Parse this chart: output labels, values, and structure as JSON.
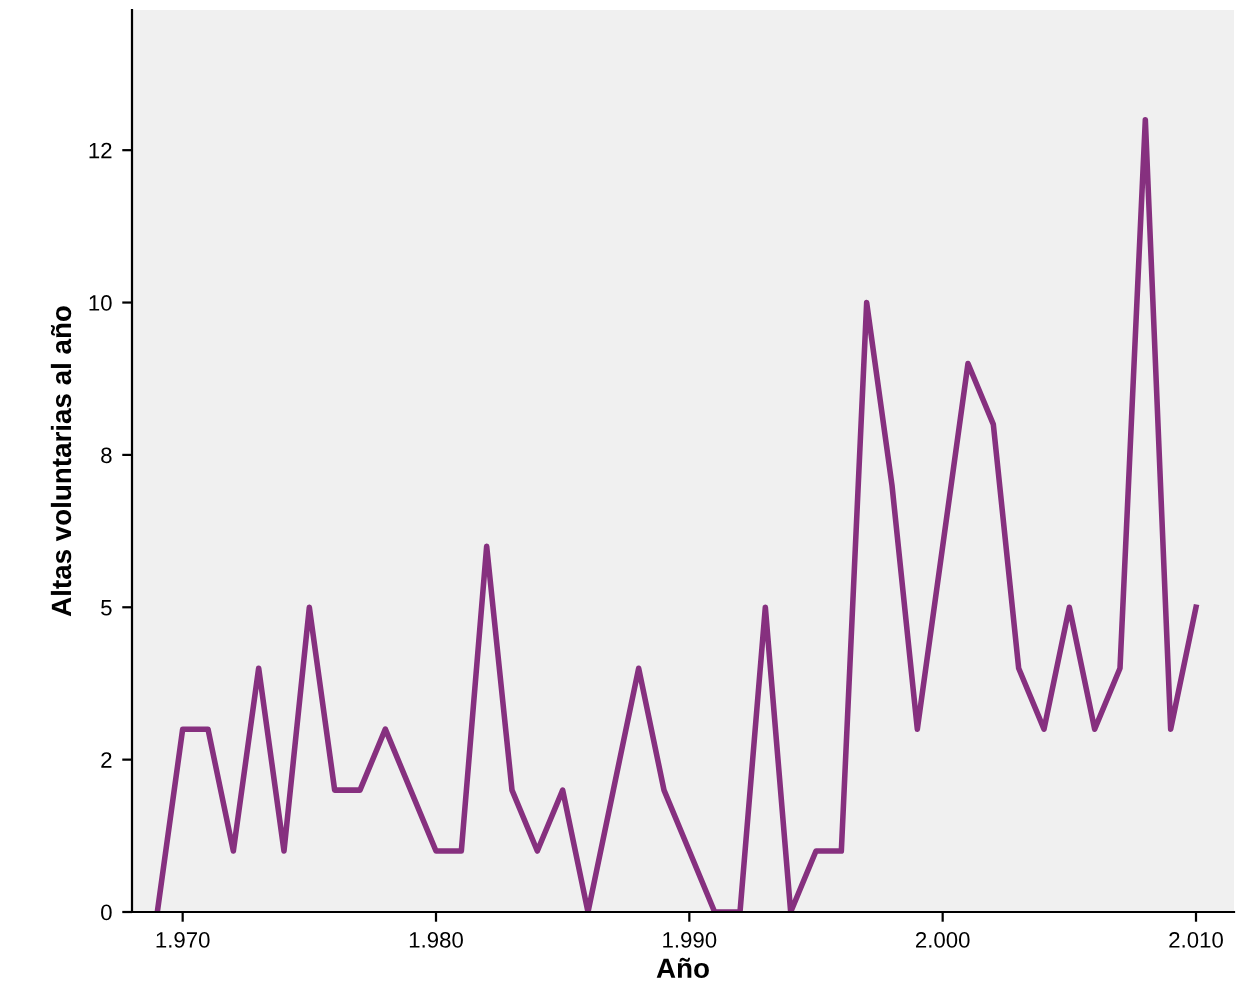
{
  "chart_data": {
    "type": "line",
    "xlabel": "Año",
    "ylabel": "Altas voluntarias al año",
    "x": [
      1969,
      1970,
      1971,
      1972,
      1973,
      1974,
      1975,
      1976,
      1977,
      1978,
      1979,
      1980,
      1981,
      1982,
      1983,
      1984,
      1985,
      1986,
      1987,
      1988,
      1989,
      1990,
      1991,
      1992,
      1993,
      1994,
      1995,
      1996,
      1997,
      1998,
      1999,
      2000,
      2001,
      2002,
      2003,
      2004,
      2005,
      2006,
      2007,
      2008,
      2009,
      2010
    ],
    "series": [
      {
        "color": "#86307f",
        "values": [
          0,
          3,
          3,
          1,
          4,
          1,
          5,
          2,
          2,
          3,
          2,
          1,
          1,
          6,
          2,
          1,
          2,
          0,
          2,
          4,
          2,
          1,
          0,
          0,
          5,
          0,
          1,
          1,
          10,
          7,
          3,
          6,
          9,
          8,
          4,
          3,
          5,
          3,
          4,
          13,
          3,
          5
        ]
      }
    ],
    "xlim": [
      1968,
      2011.5
    ],
    "ylim": [
      0,
      14.8
    ],
    "xticks": [
      {
        "value": 1970,
        "label": "1.970"
      },
      {
        "value": 1980,
        "label": "1.980"
      },
      {
        "value": 1990,
        "label": "1.990"
      },
      {
        "value": 2000,
        "label": "2.000"
      },
      {
        "value": 2010,
        "label": "2.010"
      }
    ],
    "yticks": [
      0,
      {
        "value": 2.5,
        "label": "2"
      },
      5,
      {
        "value": 7.5,
        "label": "8"
      },
      10,
      {
        "value": 12.5,
        "label": "12"
      }
    ],
    "grid": false,
    "legend": false,
    "marker": "none",
    "line_style": "solid"
  }
}
